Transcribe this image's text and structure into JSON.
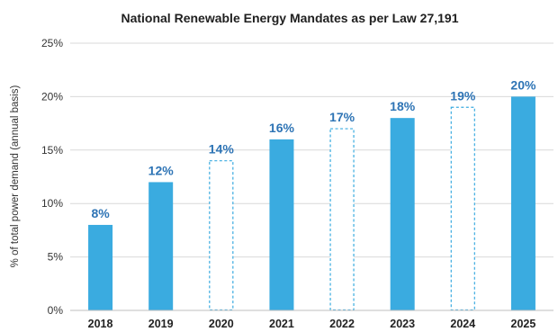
{
  "chart_data": {
    "type": "bar",
    "title": "National Renewable Energy Mandates as per Law 27,191",
    "xlabel": "",
    "ylabel": "% of total power demand (annual basis)",
    "ylim": [
      0,
      25
    ],
    "yticks": [
      0,
      5,
      10,
      15,
      20,
      25
    ],
    "ytick_labels": [
      "0%",
      "5%",
      "10%",
      "15%",
      "20%",
      "25%"
    ],
    "categories": [
      "2018",
      "2019",
      "2020",
      "2021",
      "2022",
      "2023",
      "2024",
      "2025"
    ],
    "values": [
      8,
      12,
      14,
      16,
      17,
      18,
      19,
      20
    ],
    "value_labels": [
      "8%",
      "12%",
      "14%",
      "16%",
      "17%",
      "18%",
      "19%",
      "20%"
    ],
    "bar_style": [
      "solid",
      "solid",
      "dashed",
      "solid",
      "dashed",
      "solid",
      "dashed",
      "solid"
    ],
    "grid": true,
    "legend": false,
    "colors": {
      "bar": "#3aabe0",
      "data_label": "#2e74b5",
      "grid": "#d9d9d9",
      "axis": "#bfbfbf"
    }
  }
}
